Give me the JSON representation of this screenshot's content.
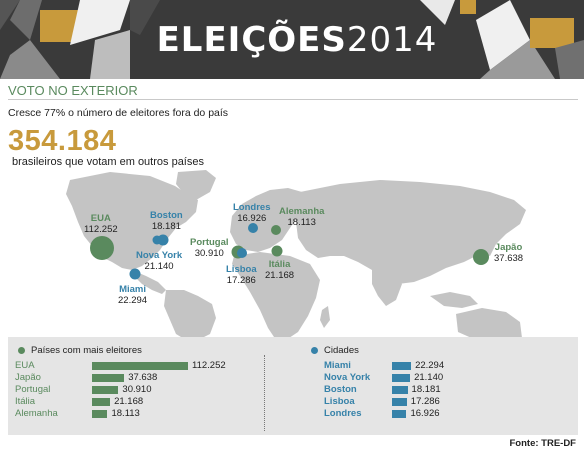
{
  "header": {
    "title_bold": "ELEIÇÕES",
    "title_year": "2014"
  },
  "section_title": "VOTO NO EXTERIOR",
  "subtitle": "Cresce 77% o número de eleitores fora do país",
  "total": {
    "value": "354.184",
    "caption": "brasileiros que votam em outros países"
  },
  "colors": {
    "country": "#5a8a5e",
    "city": "#3682a9",
    "accent": "#c89a3c",
    "map": "#c4c4c4",
    "banner": "#3a3a3a"
  },
  "map_labels": [
    {
      "key": "eua",
      "name": "EUA",
      "value": "112.252",
      "type": "country"
    },
    {
      "key": "boston",
      "name": "Boston",
      "value": "18.181",
      "type": "city"
    },
    {
      "key": "novayork",
      "name": "Nova York",
      "value": "21.140",
      "type": "city"
    },
    {
      "key": "miami",
      "name": "Miami",
      "value": "22.294",
      "type": "city"
    },
    {
      "key": "londres",
      "name": "Londres",
      "value": "16.926",
      "type": "city"
    },
    {
      "key": "alemanha",
      "name": "Alemanha",
      "value": "18.113",
      "type": "country"
    },
    {
      "key": "portugal",
      "name": "Portugal",
      "value": "30.910",
      "type": "country"
    },
    {
      "key": "lisboa",
      "name": "Lisboa",
      "value": "17.286",
      "type": "city"
    },
    {
      "key": "italia",
      "name": "Itália",
      "value": "21.168",
      "type": "country"
    },
    {
      "key": "japao",
      "name": "Japão",
      "value": "37.638",
      "type": "country"
    }
  ],
  "chart_data": [
    {
      "type": "bar",
      "title": "Países com mais eleitores",
      "categories": [
        "EUA",
        "Japão",
        "Portugal",
        "Itália",
        "Alemanha"
      ],
      "values": [
        112252,
        37638,
        30910,
        21168,
        18113
      ],
      "labels": [
        "112.252",
        "37.638",
        "30.910",
        "21.168",
        "18.113"
      ],
      "color": "#5a8a5e"
    },
    {
      "type": "bar",
      "title": "Cidades",
      "categories": [
        "Miami",
        "Nova York",
        "Boston",
        "Lisboa",
        "Londres"
      ],
      "values": [
        22294,
        21140,
        18181,
        17286,
        16926
      ],
      "labels": [
        "22.294",
        "21.140",
        "18.181",
        "17.286",
        "16.926"
      ],
      "color": "#3682a9"
    }
  ],
  "source": "Fonte: TRE-DF"
}
